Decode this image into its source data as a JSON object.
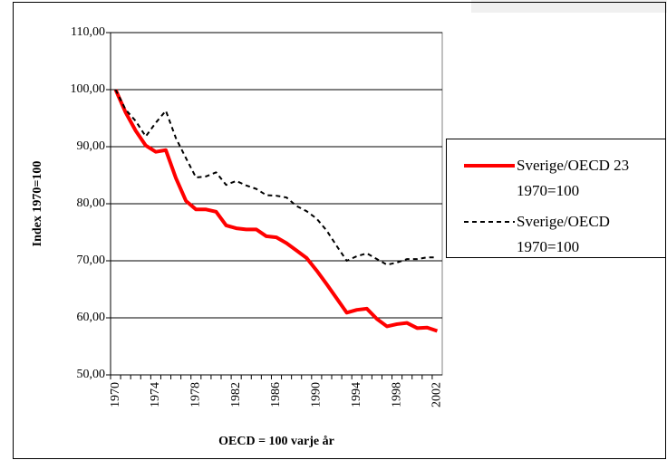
{
  "chart_data": {
    "type": "line",
    "xlabel": "OECD = 100 varje år",
    "ylabel": "Index 1970=100",
    "categories": [
      "1970",
      null,
      null,
      null,
      "1974",
      null,
      null,
      null,
      "1978",
      null,
      null,
      null,
      "1982",
      null,
      null,
      null,
      "1986",
      null,
      null,
      null,
      "1990",
      null,
      null,
      null,
      "1994",
      null,
      null,
      null,
      "1998",
      null,
      null,
      null,
      "2002"
    ],
    "series": [
      {
        "name": "Sverige/OECD 23 1970=100",
        "color": "#ff0000",
        "style": "solid",
        "values": [
          100,
          96,
          92.8,
          90.2,
          89.1,
          89.4,
          84.5,
          80.5,
          79,
          79,
          78.6,
          76.2,
          75.7,
          75.5,
          75.5,
          74.3,
          74.1,
          73.1,
          71.8,
          70.5,
          68.3,
          65.9,
          63.4,
          60.9,
          61.4,
          61.6,
          59.8,
          58.5,
          58.9,
          59.1,
          58.2,
          58.3,
          57.7
        ]
      },
      {
        "name": "Sverige/OECD 1970=100",
        "color": "#000000",
        "style": "dashed",
        "values": [
          100,
          96.5,
          94.5,
          91.8,
          94.2,
          96.3,
          91.5,
          88,
          84.6,
          84.8,
          85.5,
          83.3,
          84,
          83.2,
          82.6,
          81.5,
          81.4,
          81.1,
          79.6,
          78.7,
          77.4,
          75.3,
          72.6,
          70,
          70.8,
          71.3,
          70.3,
          69.3,
          69.7,
          70.3,
          70.3,
          70.6,
          70.6
        ]
      }
    ],
    "ylim": [
      50,
      110
    ],
    "yticks": [
      {
        "value": 50,
        "label": "50,00"
      },
      {
        "value": 60,
        "label": "60,00"
      },
      {
        "value": 70,
        "label": "70,00"
      },
      {
        "value": 80,
        "label": "80,00"
      },
      {
        "value": 90,
        "label": "90,00"
      },
      {
        "value": 100,
        "label": "100,00"
      },
      {
        "value": 110,
        "label": "110,00"
      }
    ],
    "grid": true,
    "legend": "right"
  }
}
